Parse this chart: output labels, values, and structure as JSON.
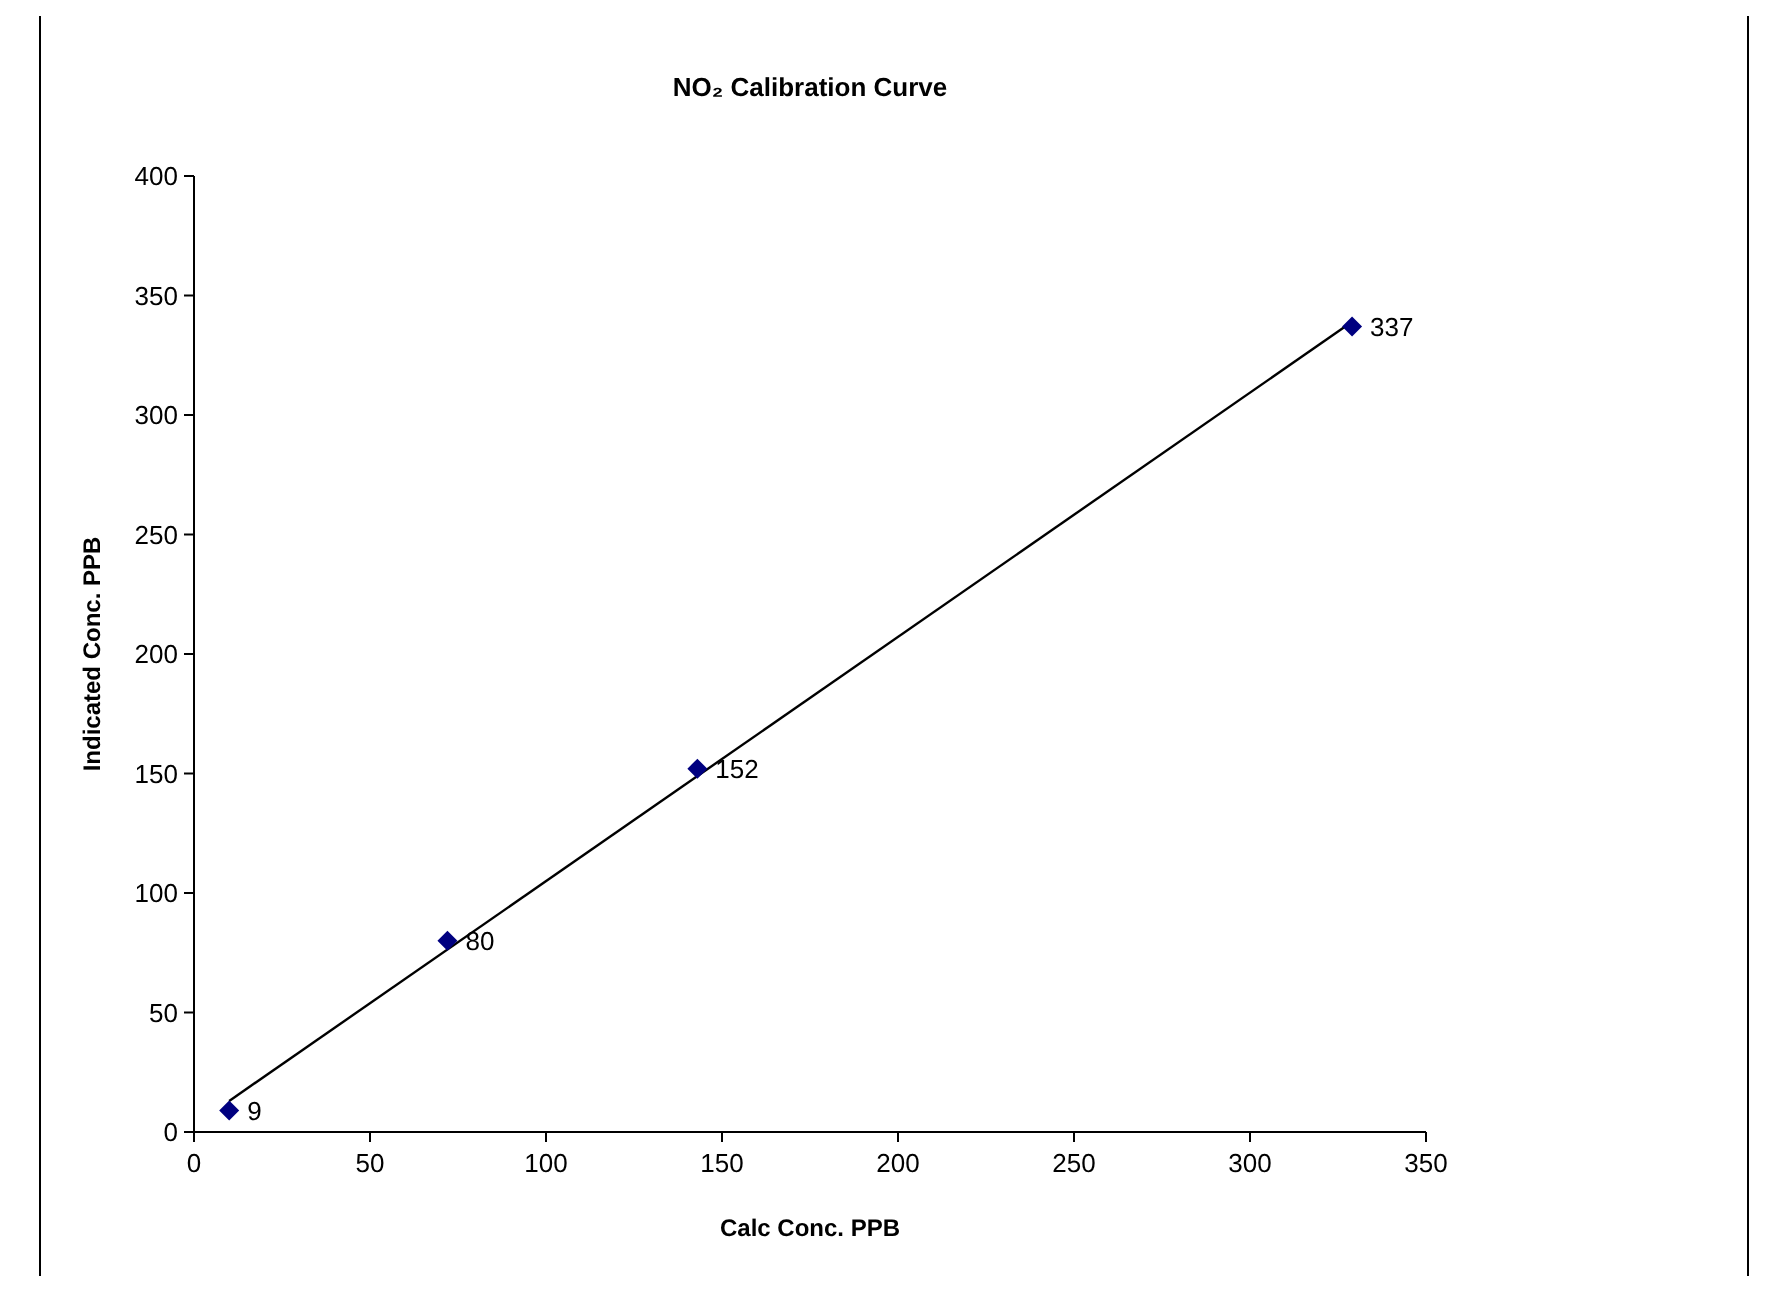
{
  "chart_data": {
    "type": "scatter",
    "title": "NO₂ Calibration Curve",
    "xlabel": "Calc Conc. PPB",
    "ylabel": "Indicated Conc. PPB",
    "xlim": [
      0,
      350
    ],
    "xticks": [
      0,
      50,
      100,
      150,
      200,
      250,
      300,
      350
    ],
    "ylim": [
      0,
      400
    ],
    "yticks": [
      0,
      50,
      100,
      150,
      200,
      250,
      300,
      350,
      400
    ],
    "grid": false,
    "series": [
      {
        "type": "line",
        "color": "#000000",
        "x": [
          10,
          329
        ],
        "values": [
          13,
          339
        ]
      },
      {
        "marker": "diamond",
        "color": "#000080",
        "x": [
          10,
          72,
          143,
          329
        ],
        "values": [
          9,
          80,
          152,
          337
        ],
        "value_labels": [
          "9",
          "80",
          "152",
          "337"
        ]
      }
    ]
  }
}
